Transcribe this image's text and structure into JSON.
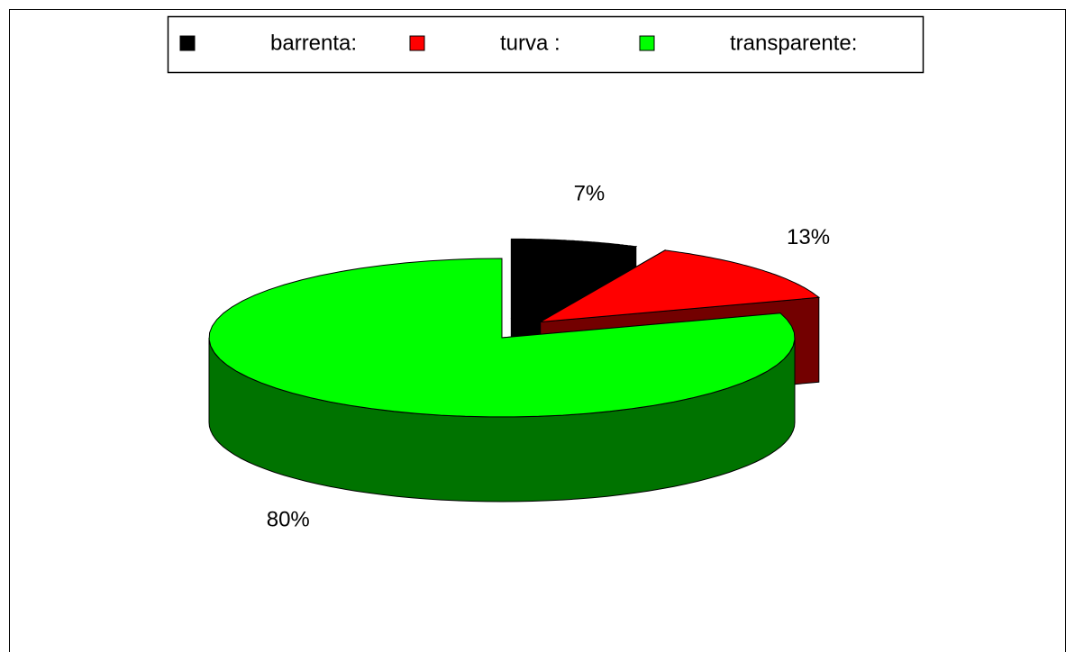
{
  "chart_data": {
    "type": "pie",
    "categories": [
      "barrenta:",
      "turva :",
      "transparente:"
    ],
    "values": [
      7,
      13,
      80
    ],
    "value_labels": [
      "7%",
      "13%",
      "80%"
    ],
    "colors": [
      "#000000",
      "#ff0000",
      "#00ff00"
    ],
    "legend": "top"
  }
}
